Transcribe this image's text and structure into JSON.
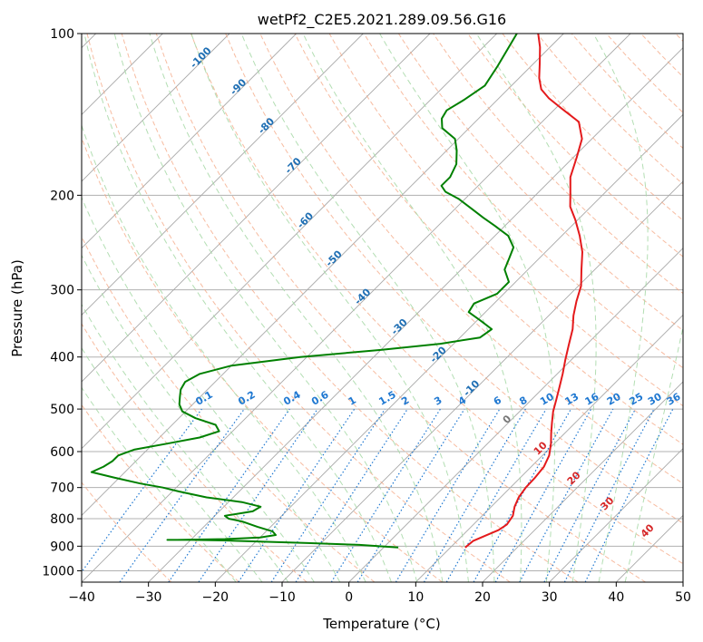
{
  "chart_data": {
    "type": "line",
    "title": "wetPf2_C2E5.2021.289.09.56.G16",
    "xlabel": "Temperature (°C)",
    "ylabel": "Pressure (hPa)",
    "xlim": [
      -40,
      50
    ],
    "ylim": [
      1050,
      100
    ],
    "y_scale": "log",
    "x_ticks": [
      "−40",
      "−30",
      "−20",
      "−10",
      "0",
      "10",
      "20",
      "30",
      "40",
      "50"
    ],
    "y_ticks": [
      "100",
      "200",
      "300",
      "400",
      "500",
      "600",
      "700",
      "800",
      "900",
      "1000"
    ],
    "grid": true,
    "skew": 45,
    "colors": {
      "temperature": "#e41a1c",
      "dewpoint": "#008000",
      "isotherm": "#888888",
      "dry_adiabat": "#f4a582",
      "moist_adiabat": "#a6d8a6",
      "mixing_ratio": "#1f78d1",
      "isotherm_label": "#1f6fb4",
      "lcl_label": "#d62728"
    },
    "series": [
      {
        "points": [
          [
            12.2,
            905
          ],
          [
            12.4,
            880
          ],
          [
            13.5,
            860
          ],
          [
            14.6,
            840
          ],
          [
            15.0,
            820
          ],
          [
            14.6,
            790
          ],
          [
            13.5,
            760
          ],
          [
            12.7,
            730
          ],
          [
            12.3,
            700
          ],
          [
            12.2,
            670
          ],
          [
            11.9,
            640
          ],
          [
            11.0,
            610
          ],
          [
            9.5,
            580
          ],
          [
            8.0,
            555
          ],
          [
            6.5,
            530
          ],
          [
            5.0,
            505
          ],
          [
            3.7,
            480
          ],
          [
            2.3,
            455
          ],
          [
            0.8,
            430
          ],
          [
            -0.9,
            405
          ],
          [
            -2.6,
            380
          ],
          [
            -4.4,
            355
          ],
          [
            -6.3,
            335
          ],
          [
            -8.0,
            315
          ],
          [
            -9.6,
            295
          ],
          [
            -12.0,
            275
          ],
          [
            -14.5,
            255
          ],
          [
            -17.3,
            238
          ],
          [
            -20.4,
            222
          ],
          [
            -23.1,
            210
          ],
          [
            -25.3,
            197
          ],
          [
            -27.5,
            185
          ],
          [
            -29.5,
            170
          ],
          [
            -31.5,
            157
          ],
          [
            -34.5,
            146
          ],
          [
            -39.0,
            138
          ],
          [
            -42.5,
            132
          ],
          [
            -45.0,
            127
          ],
          [
            -47.0,
            121
          ],
          [
            -49.0,
            114
          ],
          [
            -51.5,
            106
          ],
          [
            -53.8,
            100
          ]
        ]
      },
      {
        "points": [
          [
            2.2,
            905
          ],
          [
            -4.0,
            895
          ],
          [
            -12.0,
            888
          ],
          [
            -20.0,
            882
          ],
          [
            -25.0,
            878
          ],
          [
            -30.0,
            876
          ],
          [
            -33.5,
            876
          ],
          [
            -32.0,
            876
          ],
          [
            -25.0,
            873
          ],
          [
            -20.0,
            867
          ],
          [
            -18.0,
            858
          ],
          [
            -19.0,
            845
          ],
          [
            -22.0,
            828
          ],
          [
            -25.0,
            810
          ],
          [
            -27.5,
            800
          ],
          [
            -28.5,
            790
          ],
          [
            -25.0,
            775
          ],
          [
            -24.5,
            760
          ],
          [
            -28.0,
            745
          ],
          [
            -34.0,
            730
          ],
          [
            -39.0,
            712
          ],
          [
            -42.0,
            700
          ],
          [
            -46.0,
            688
          ],
          [
            -51.0,
            670
          ],
          [
            -55.0,
            655
          ],
          [
            -54.0,
            640
          ],
          [
            -53.5,
            625
          ],
          [
            -53.5,
            610
          ],
          [
            -52.0,
            595
          ],
          [
            -48.0,
            580
          ],
          [
            -44.0,
            565
          ],
          [
            -42.0,
            550
          ],
          [
            -43.5,
            535
          ],
          [
            -47.5,
            520
          ],
          [
            -50.5,
            505
          ],
          [
            -52.0,
            490
          ],
          [
            -53.0,
            475
          ],
          [
            -54.0,
            460
          ],
          [
            -54.5,
            445
          ],
          [
            -53.5,
            430
          ],
          [
            -50.0,
            415
          ],
          [
            -41.0,
            400
          ],
          [
            -30.0,
            388
          ],
          [
            -22.0,
            378
          ],
          [
            -17.0,
            368
          ],
          [
            -16.5,
            355
          ],
          [
            -19.5,
            342
          ],
          [
            -22.5,
            330
          ],
          [
            -23.0,
            318
          ],
          [
            -21.0,
            305
          ],
          [
            -21.0,
            290
          ],
          [
            -23.5,
            275
          ],
          [
            -24.5,
            262
          ],
          [
            -25.5,
            250
          ],
          [
            -28.0,
            238
          ],
          [
            -31.5,
            228
          ],
          [
            -34.5,
            220
          ],
          [
            -37.5,
            212
          ],
          [
            -41.0,
            203
          ],
          [
            -44.0,
            197
          ],
          [
            -45.5,
            192
          ],
          [
            -45.5,
            185
          ],
          [
            -46.5,
            175
          ],
          [
            -48.5,
            165
          ],
          [
            -50.5,
            157
          ],
          [
            -54.0,
            150
          ],
          [
            -55.5,
            144
          ],
          [
            -56.0,
            139
          ],
          [
            -55.0,
            133
          ],
          [
            -54.0,
            125
          ],
          [
            -55.0,
            115
          ],
          [
            -57.0,
            100
          ]
        ]
      }
    ],
    "isotherm_labels": [
      "-100",
      "-90",
      "-80",
      "-70",
      "-60",
      "-50",
      "-40",
      "-30",
      "-20",
      "-10"
    ],
    "mixing_ratio_labels": [
      "0.1",
      "0.2",
      "0.4",
      "0.6",
      "1",
      "1.5",
      "2",
      "3",
      "4",
      "6",
      "8",
      "10",
      "13",
      "16",
      "20",
      "25",
      "30",
      "36"
    ],
    "lcl_labels": [
      "0",
      "10",
      "20",
      "30",
      "40"
    ]
  }
}
